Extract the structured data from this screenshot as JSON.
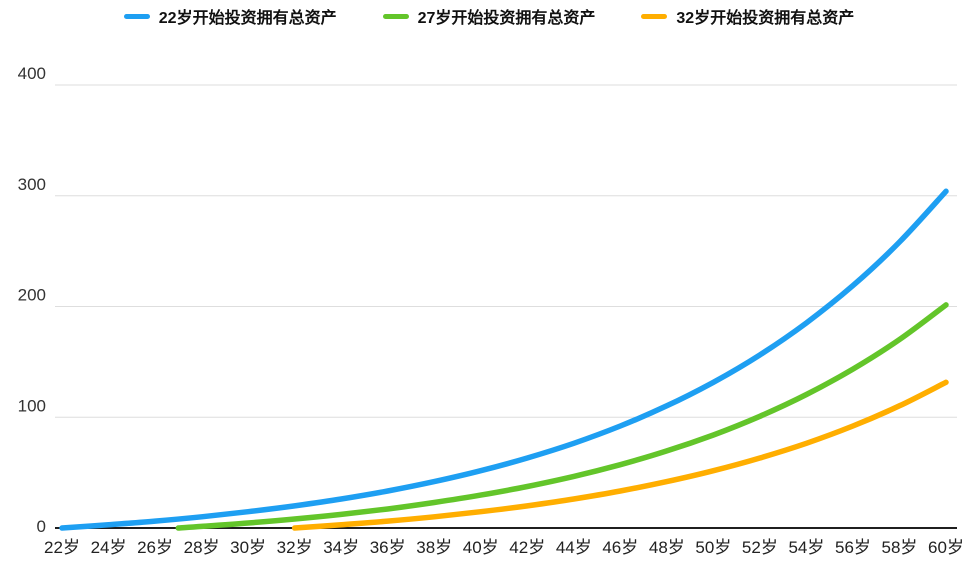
{
  "legend": {
    "items": [
      {
        "label": "22岁开始投资拥有总资产",
        "color": "#1E9FF2"
      },
      {
        "label": "27岁开始投资拥有总资产",
        "color": "#63C52A"
      },
      {
        "label": "32岁开始投资拥有总资产",
        "color": "#FFAE00"
      }
    ]
  },
  "chart_data": {
    "type": "line",
    "title": "",
    "xlabel": "",
    "ylabel": "",
    "ylim": [
      0,
      400
    ],
    "y_ticks": [
      0,
      100,
      200,
      300,
      400
    ],
    "x_tick_labels": [
      "22岁",
      "24岁",
      "26岁",
      "28岁",
      "30岁",
      "32岁",
      "34岁",
      "36岁",
      "38岁",
      "40岁",
      "42岁",
      "44岁",
      "46岁",
      "48岁",
      "50岁",
      "52岁",
      "54岁",
      "56岁",
      "58岁",
      "60岁"
    ],
    "x_tick_ages": [
      22,
      24,
      26,
      28,
      30,
      32,
      34,
      36,
      38,
      40,
      42,
      44,
      46,
      48,
      50,
      52,
      54,
      56,
      58,
      60
    ],
    "grid": true,
    "legend_position": "top",
    "series": [
      {
        "name": "22岁开始投资拥有总资产",
        "color": "#1E9FF2",
        "start_age": 22,
        "ages": [
          22,
          24,
          26,
          28,
          30,
          32,
          34,
          36,
          38,
          40,
          42,
          44,
          46,
          48,
          50,
          52,
          54,
          56,
          58,
          60
        ],
        "values": [
          0,
          2.9,
          6.2,
          10.1,
          14.7,
          20.0,
          26.2,
          33.4,
          41.9,
          51.7,
          63.2,
          76.5,
          92.1,
          110.3,
          131.6,
          156.3,
          185.2,
          218.9,
          258.2,
          304.0
        ]
      },
      {
        "name": "27岁开始投资拥有总资产",
        "color": "#63C52A",
        "start_age": 27,
        "ages": [
          27,
          28,
          30,
          32,
          34,
          36,
          38,
          40,
          42,
          44,
          46,
          48,
          50,
          52,
          54,
          56,
          58,
          60
        ],
        "values": [
          0,
          1.4,
          4.5,
          8.1,
          12.3,
          17.2,
          23.0,
          29.7,
          37.5,
          46.6,
          57.2,
          69.6,
          84.0,
          100.9,
          120.5,
          143.5,
          170.2,
          201.4
        ]
      },
      {
        "name": "32岁开始投资拥有总资产",
        "color": "#FFAE00",
        "start_age": 32,
        "ages": [
          32,
          34,
          36,
          38,
          40,
          42,
          44,
          46,
          48,
          50,
          52,
          54,
          56,
          58,
          60
        ],
        "values": [
          0,
          2.9,
          6.2,
          10.1,
          14.7,
          20.0,
          26.2,
          33.4,
          41.9,
          51.7,
          63.2,
          76.5,
          92.1,
          110.3,
          131.6
        ]
      }
    ]
  }
}
